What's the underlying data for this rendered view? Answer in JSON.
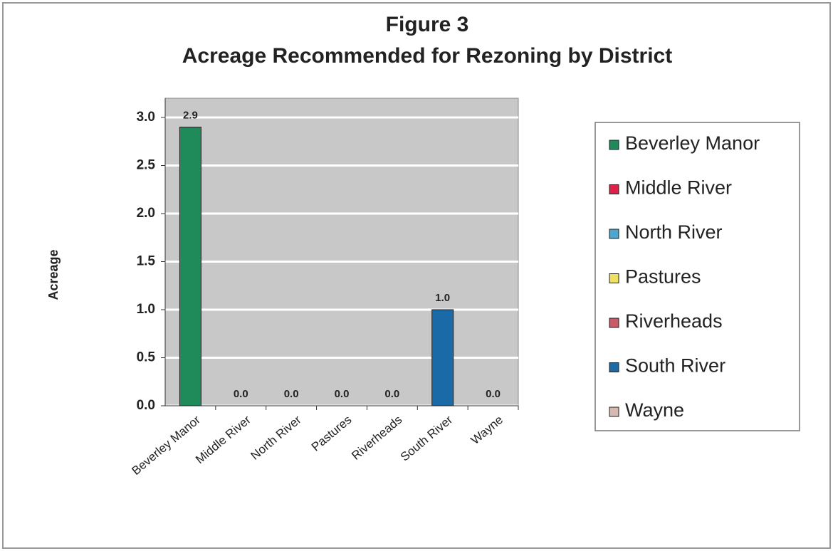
{
  "chart_data": {
    "type": "bar",
    "title": "Figure 3",
    "subtitle": "Acreage  Recommended for Rezoning by District",
    "y_label": "Acreage",
    "categories": [
      "Beverley Manor",
      "Middle River",
      "North River",
      "Pastures",
      "Riverheads",
      "South River",
      "Wayne"
    ],
    "values": [
      2.9,
      0,
      0,
      0,
      0,
      1.0,
      0
    ],
    "value_labels": [
      "2.9",
      "0.0",
      "0.0",
      "0.0",
      "0.0",
      "1.0",
      "0.0"
    ],
    "colors": [
      "#1f8a5a",
      "#e0204a",
      "#4aa8d0",
      "#f0e060",
      "#c85a6a",
      "#1a6aa8",
      "#d8b8b0"
    ],
    "ylim": [
      0,
      3.2
    ],
    "yticks": [
      {
        "value": 0,
        "label": "0.0"
      },
      0.5,
      {
        "value": 1,
        "label": "1.0"
      },
      1.5,
      {
        "value": 2,
        "label": "2.0"
      },
      2.5,
      {
        "value": 3,
        "label": "3.0"
      }
    ],
    "grid": true,
    "legend": "right"
  }
}
